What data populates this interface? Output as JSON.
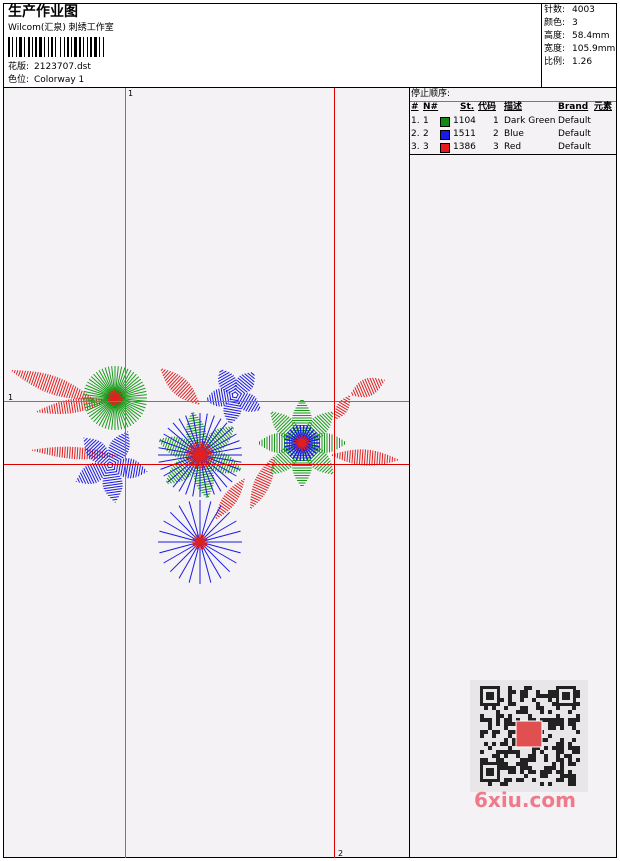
{
  "header": {
    "title": "生产作业图",
    "studio": "Wilcom(汇泉) 刺绣工作室",
    "design_label": "花版:",
    "design_file": "2123707.dst",
    "colorway_label": "色位:",
    "colorway": "Colorway 1"
  },
  "stats": [
    {
      "label": "针数:",
      "value": "4003"
    },
    {
      "label": "颜色:",
      "value": "3"
    },
    {
      "label": "高度:",
      "value": "58.4mm"
    },
    {
      "label": "宽度:",
      "value": "105.9mm"
    },
    {
      "label": "比例:",
      "value": "1.26"
    }
  ],
  "stop_sequence": {
    "title": "停止顺序:",
    "columns": [
      "#",
      "N#",
      "St.",
      "代码",
      "描述",
      "Brand",
      "元素"
    ],
    "rows": [
      {
        "index": "1.",
        "n": "1",
        "color": "#138a13",
        "stitches": "1104",
        "code": "1",
        "description": "Dark Green",
        "brand": "Default"
      },
      {
        "index": "2.",
        "n": "2",
        "color": "#1a1ae6",
        "stitches": "1511",
        "code": "2",
        "description": "Blue",
        "brand": "Default"
      },
      {
        "index": "3.",
        "n": "3",
        "color": "#e61a1a",
        "stitches": "1386",
        "code": "3",
        "description": "Red",
        "brand": "Default"
      }
    ]
  },
  "guides": {
    "green_top": "1",
    "green_left": "1",
    "red_bottom": "2"
  },
  "watermark": "6xiu.com"
}
